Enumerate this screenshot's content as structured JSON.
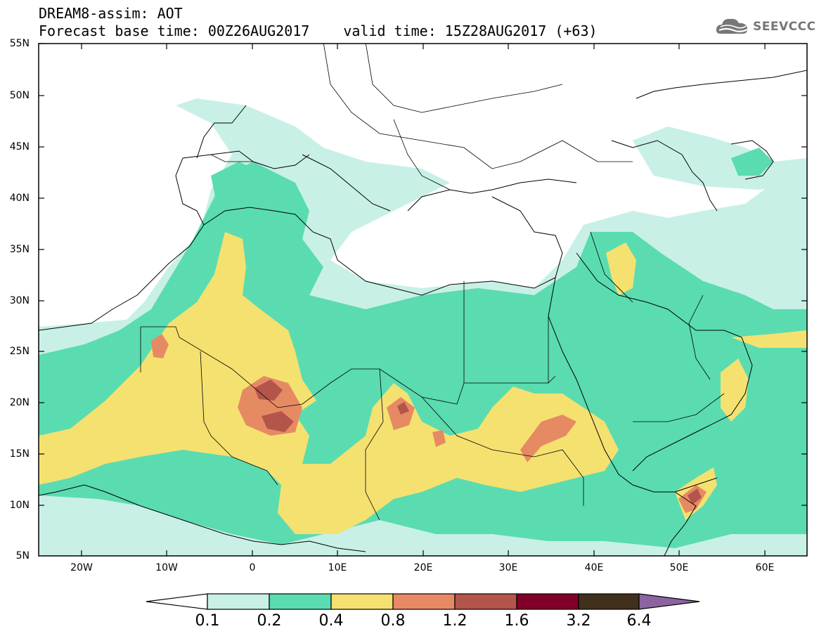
{
  "header": {
    "line1": "DREAM8-assim: AOT",
    "base_time": "Forecast base time: 00Z26AUG2017",
    "valid_time": "valid time: 15Z28AUG2017 (+63)"
  },
  "logo": {
    "text": "SEEVCCC",
    "icon": "cloud-icon"
  },
  "map": {
    "lat_labels": [
      "55N",
      "50N",
      "45N",
      "40N",
      "35N",
      "30N",
      "25N",
      "20N",
      "15N",
      "10N",
      "5N"
    ],
    "lon_labels": [
      "20W",
      "10W",
      "0",
      "10E",
      "20E",
      "30E",
      "40E",
      "50E",
      "60E"
    ]
  },
  "colorbar": {
    "labels": [
      "0.1",
      "0.2",
      "0.4",
      "0.8",
      "1.2",
      "1.6",
      "3.2",
      "6.4"
    ],
    "colors": [
      "#ffffff",
      "#c8f0e6",
      "#5adcb0",
      "#f5e170",
      "#e68a64",
      "#b4554b",
      "#820028",
      "#40301c",
      "#8c64a0"
    ]
  },
  "colors": {
    "aot_0_1": "#c8f0e6",
    "aot_0_2": "#5adcb0",
    "aot_0_4": "#f5e170",
    "aot_0_8": "#e68a64",
    "aot_1_2": "#b4554b",
    "aot_1_6": "#820028"
  }
}
